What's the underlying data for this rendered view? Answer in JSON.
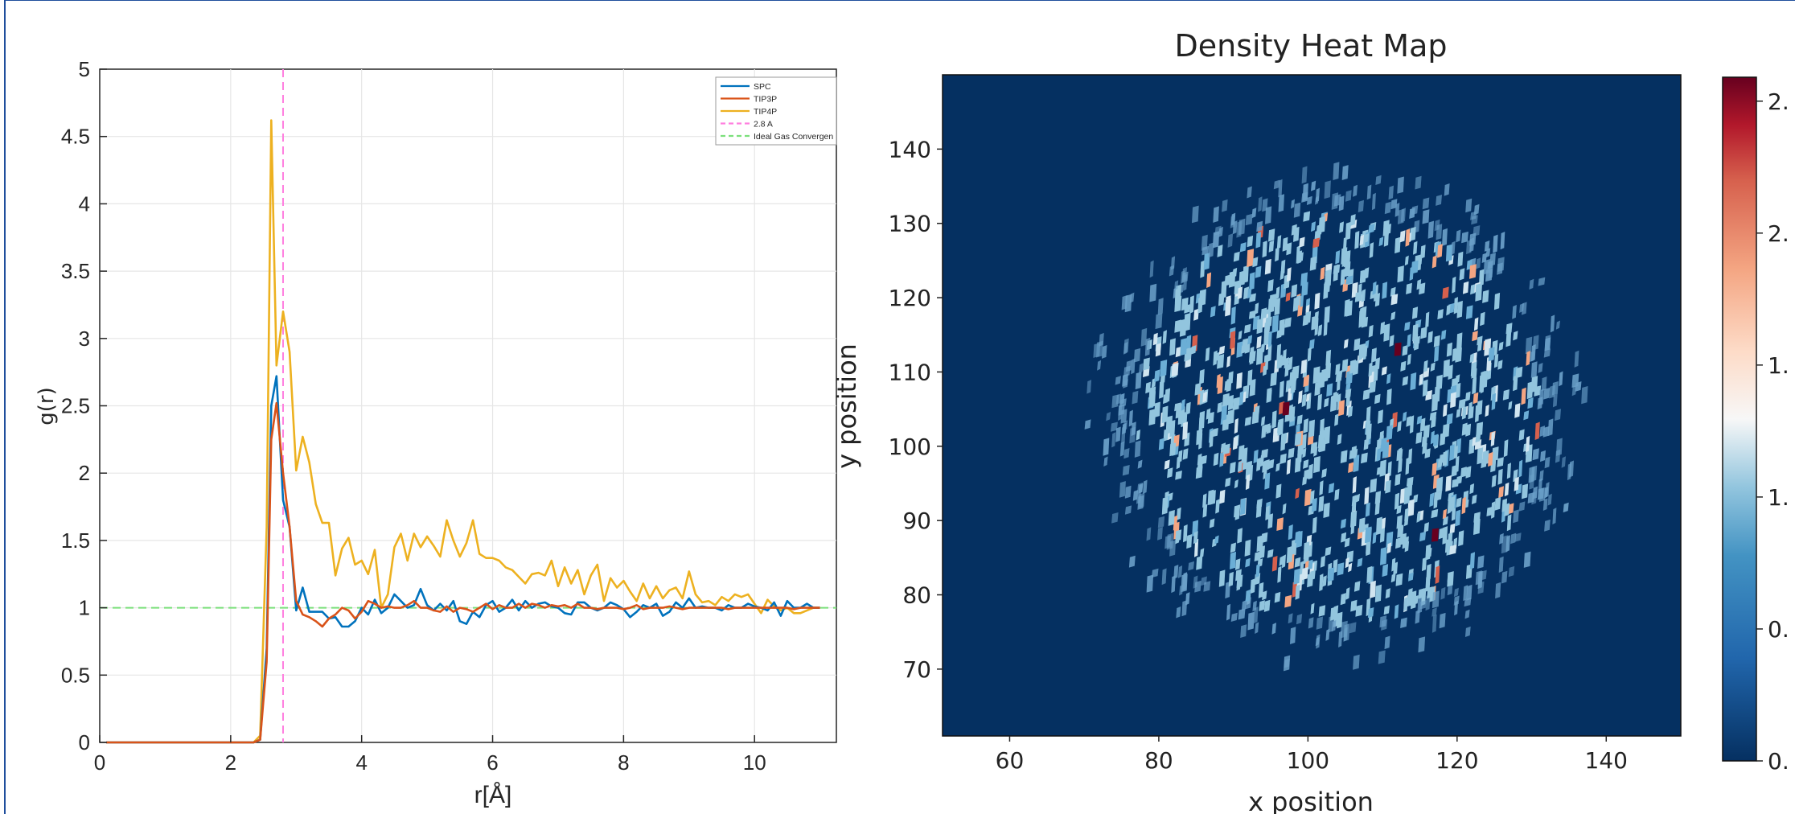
{
  "colors": {
    "frame_border": "#1f4e9c",
    "spc": "#0072bd",
    "tip3p": "#d95319",
    "tip4p": "#edb120",
    "ref_2_8": "#ff7fdf",
    "ideal_gas": "#7be07b",
    "heat_background": "#053061",
    "heat_low": "#92c5de",
    "heat_mid": "#d1e5f0",
    "heat_orange": "#f4a582",
    "heat_high": "#67001f"
  },
  "chart_data": [
    {
      "type": "line",
      "title": "",
      "xlabel": "r[Å]",
      "ylabel": "g(r)",
      "xlim": [
        0,
        11.25
      ],
      "ylim": [
        0,
        5
      ],
      "xticks": [
        0,
        2,
        4,
        6,
        8,
        10
      ],
      "xtick_labels": [
        "0",
        "2",
        "4",
        "6",
        "8",
        "10"
      ],
      "yticks": [
        0,
        0.5,
        1,
        1.5,
        2,
        2.5,
        3,
        3.5,
        4,
        4.5,
        5
      ],
      "ytick_labels": [
        "0",
        "0.5",
        "1",
        "1.5",
        "2",
        "2.5",
        "3",
        "3.5",
        "4",
        "4.5",
        "5"
      ],
      "grid": true,
      "legend_position": "top-right",
      "x": [
        0.1,
        1.0,
        2.0,
        2.35,
        2.45,
        2.55,
        2.62,
        2.7,
        2.8,
        2.9,
        3.0,
        3.1,
        3.2,
        3.3,
        3.4,
        3.5,
        3.6,
        3.7,
        3.8,
        3.9,
        4.0,
        4.1,
        4.2,
        4.3,
        4.4,
        4.5,
        4.6,
        4.7,
        4.8,
        4.9,
        5.0,
        5.1,
        5.2,
        5.3,
        5.4,
        5.5,
        5.6,
        5.7,
        5.8,
        5.9,
        6.0,
        6.1,
        6.2,
        6.3,
        6.4,
        6.5,
        6.6,
        6.7,
        6.8,
        6.9,
        7.0,
        7.1,
        7.2,
        7.3,
        7.4,
        7.5,
        7.6,
        7.7,
        7.8,
        7.9,
        8.0,
        8.1,
        8.2,
        8.3,
        8.4,
        8.5,
        8.6,
        8.7,
        8.8,
        8.9,
        9.0,
        9.1,
        9.2,
        9.3,
        9.4,
        9.5,
        9.6,
        9.7,
        9.8,
        9.9,
        10.0,
        10.1,
        10.2,
        10.3,
        10.4,
        10.5,
        10.6,
        10.7,
        10.8,
        10.9,
        11.0
      ],
      "series": [
        {
          "name": "SPC",
          "values": [
            0,
            0,
            0,
            0,
            0.02,
            0.7,
            2.5,
            2.72,
            1.8,
            1.6,
            0.98,
            1.15,
            0.97,
            0.97,
            0.97,
            0.92,
            0.93,
            0.86,
            0.86,
            0.9,
            1.0,
            0.95,
            1.06,
            0.96,
            1.0,
            1.1,
            1.05,
            1.0,
            1.02,
            1.14,
            1.02,
            0.98,
            1.03,
            0.98,
            1.05,
            0.9,
            0.88,
            0.97,
            0.93,
            1.02,
            1.05,
            0.97,
            1.0,
            1.06,
            0.98,
            1.05,
            1.0,
            1.03,
            1.04,
            1.01,
            1.0,
            0.96,
            0.95,
            1.04,
            1.04,
            1.0,
            0.98,
            1.0,
            1.04,
            1.02,
            0.99,
            0.93,
            0.97,
            1.02,
            1.0,
            1.03,
            0.94,
            0.97,
            1.04,
            1.0,
            1.07,
            1.0,
            1.01,
            1.0,
            1.0,
            0.98,
            1.02,
            1.0,
            1.0,
            1.03,
            1.01,
            1.0,
            0.98,
            1.04,
            0.94,
            1.05,
            1.0,
            1.0,
            1.03,
            1.0,
            1.0
          ]
        },
        {
          "name": "TIP3P",
          "values": [
            0,
            0,
            0,
            0,
            0.02,
            0.6,
            2.25,
            2.52,
            2.0,
            1.6,
            1.05,
            0.95,
            0.93,
            0.9,
            0.86,
            0.92,
            0.95,
            1.0,
            0.98,
            0.92,
            0.97,
            1.05,
            1.03,
            1.0,
            1.01,
            1.0,
            1.0,
            1.02,
            1.05,
            1.0,
            1.0,
            0.98,
            0.97,
            1.01,
            0.97,
            1.0,
            0.99,
            0.97,
            1.0,
            1.03,
            0.99,
            1.02,
            1.0,
            1.0,
            1.03,
            1.0,
            1.03,
            1.02,
            1.0,
            1.02,
            1.01,
            1.02,
            1.0,
            1.03,
            1.0,
            1.0,
            0.99,
            1.0,
            1.0,
            1.0,
            0.99,
            1.0,
            1.02,
            0.99,
            1.0,
            1.0,
            1.0,
            1.01,
            1.0,
            0.99,
            1.0,
            1.0,
            1.0,
            1.0,
            1.0,
            1.0,
            0.99,
            1.0,
            1.0,
            1.0,
            1.0,
            1.0,
            1.0,
            1.0,
            1.0,
            1.0,
            0.99,
            1.0,
            1.0,
            1.0,
            1.0
          ]
        },
        {
          "name": "TIP4P",
          "values": [
            0,
            0,
            0,
            0,
            0.05,
            1.6,
            4.62,
            2.8,
            3.2,
            2.9,
            2.02,
            2.27,
            2.08,
            1.77,
            1.63,
            1.63,
            1.24,
            1.44,
            1.52,
            1.32,
            1.35,
            1.25,
            1.43,
            1.0,
            1.1,
            1.45,
            1.55,
            1.35,
            1.55,
            1.45,
            1.53,
            1.46,
            1.38,
            1.65,
            1.5,
            1.38,
            1.48,
            1.65,
            1.4,
            1.37,
            1.37,
            1.35,
            1.3,
            1.28,
            1.23,
            1.18,
            1.25,
            1.26,
            1.24,
            1.35,
            1.16,
            1.3,
            1.18,
            1.28,
            1.1,
            1.24,
            1.32,
            1.05,
            1.22,
            1.15,
            1.2,
            1.12,
            1.05,
            1.18,
            1.07,
            1.16,
            1.07,
            1.13,
            1.15,
            1.07,
            1.27,
            1.1,
            1.04,
            1.05,
            1.02,
            1.08,
            1.05,
            1.1,
            1.08,
            1.1,
            1.03,
            0.96,
            1.06,
            1.01,
            0.98,
            1.0,
            0.96,
            0.96,
            0.98,
            1.0,
            1.0
          ]
        }
      ],
      "reference_lines": [
        {
          "name": "2.8 A",
          "orientation": "vertical",
          "value": 2.8
        },
        {
          "name": "Ideal Gas Convergen",
          "orientation": "horizontal",
          "value": 1
        }
      ],
      "legend": [
        "SPC",
        "TIP3P",
        "TIP4P",
        "2.8 A",
        "Ideal Gas Convergen"
      ]
    },
    {
      "type": "heatmap",
      "title": "Density Heat Map",
      "xlabel": "x position",
      "ylabel": "y position",
      "xlim": [
        51,
        150
      ],
      "ylim": [
        61,
        150
      ],
      "xtick_labels": [
        "60",
        "80",
        "100",
        "120",
        "140"
      ],
      "ytick_labels": [
        "70",
        "80",
        "90",
        "100",
        "110",
        "120",
        "130",
        "140"
      ],
      "colorbar": {
        "colormap": "RdBu_r",
        "tick_labels": [
          "0.",
          "0.",
          "1.",
          "1.",
          "2.",
          "2."
        ]
      },
      "cluster": {
        "center_x": 104,
        "center_y": 104,
        "radius": 30
      }
    }
  ]
}
